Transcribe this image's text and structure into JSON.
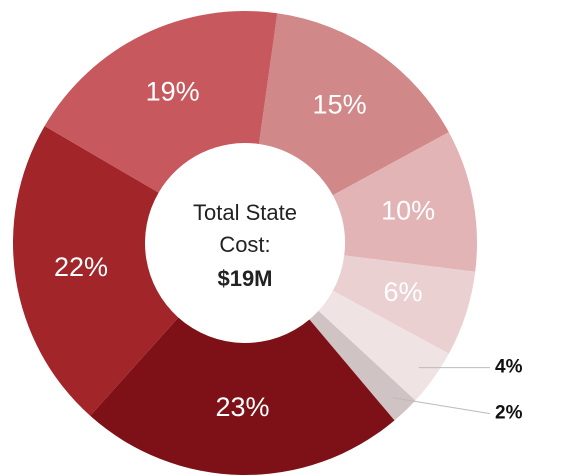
{
  "chart_data": {
    "type": "donut",
    "center_label": [
      "Total State",
      "Cost:"
    ],
    "total_label": "$19M",
    "values": [
      15,
      10,
      6,
      4,
      2,
      23,
      22,
      19
    ],
    "value_labels": [
      "15%",
      "10%",
      "6%",
      "4%",
      "2%",
      "23%",
      "22%",
      "19%"
    ],
    "colors": [
      "#d08888",
      "#e2b4b5",
      "#ead0d1",
      "#efe3e4",
      "#cfc3c4",
      "#7d1117",
      "#a2252a",
      "#c7585d"
    ]
  }
}
